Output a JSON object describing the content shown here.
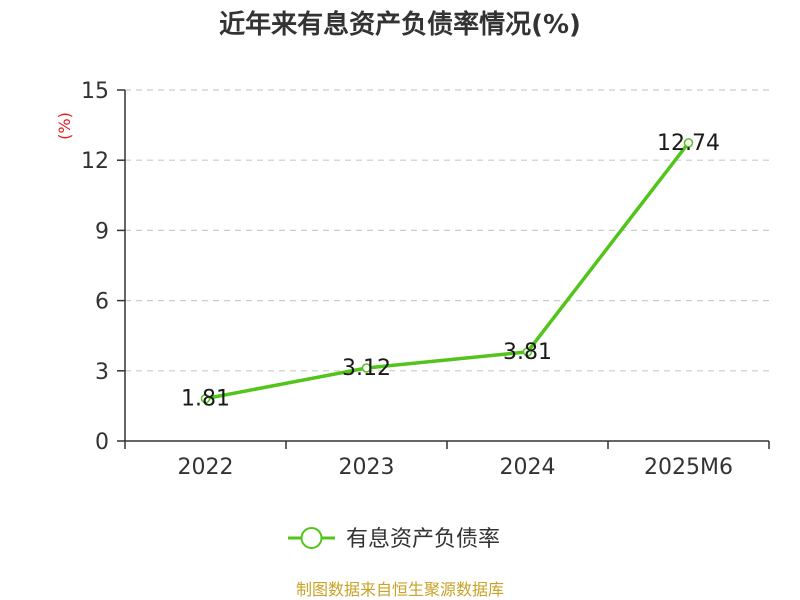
{
  "chart_data": {
    "type": "line",
    "title": "近年来有息资产负债率情况(%)",
    "unit_label": "(%)",
    "categories": [
      "2022",
      "2023",
      "2024",
      "2025M6"
    ],
    "series": [
      {
        "name": "有息资产负债率",
        "values": [
          1.81,
          3.12,
          3.81,
          12.74
        ],
        "color": "#52c41a"
      }
    ],
    "ylim": [
      0,
      15
    ],
    "yticks": [
      0,
      3,
      6,
      9,
      12,
      15
    ],
    "grid": true,
    "legend_position": "bottom"
  },
  "source": "制图数据来自恒生聚源数据库"
}
